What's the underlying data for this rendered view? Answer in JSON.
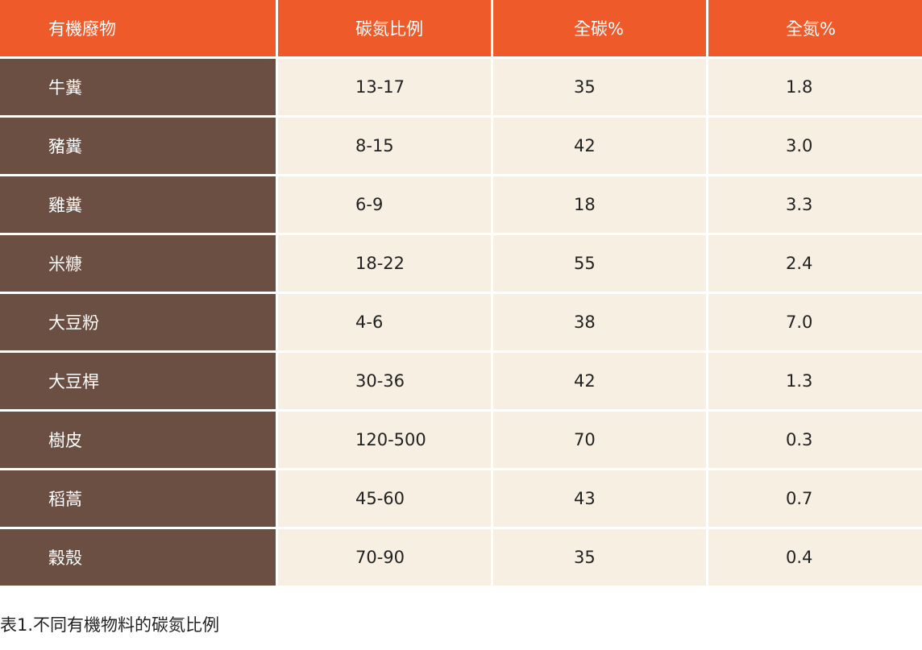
{
  "table": {
    "header": [
      "有機廢物",
      "碳氮比例",
      "全碳%",
      "全氮%"
    ],
    "rows": [
      [
        "牛糞",
        "13-17",
        "35",
        "1.8"
      ],
      [
        "豬糞",
        "8-15",
        "42",
        "3.0"
      ],
      [
        "雞糞",
        "6-9",
        "18",
        "3.3"
      ],
      [
        "米糠",
        "18-22",
        "55",
        "2.4"
      ],
      [
        "大豆粉",
        "4-6",
        "38",
        "7.0"
      ],
      [
        "大豆桿",
        "30-36",
        "42",
        "1.3"
      ],
      [
        "樹皮",
        "120-500",
        "70",
        "0.3"
      ],
      [
        "稻蒿",
        "45-60",
        "43",
        "0.7"
      ],
      [
        "穀殼",
        "70-90",
        "35",
        "0.4"
      ]
    ]
  },
  "caption": "表1.不同有機物料的碳氮比例"
}
